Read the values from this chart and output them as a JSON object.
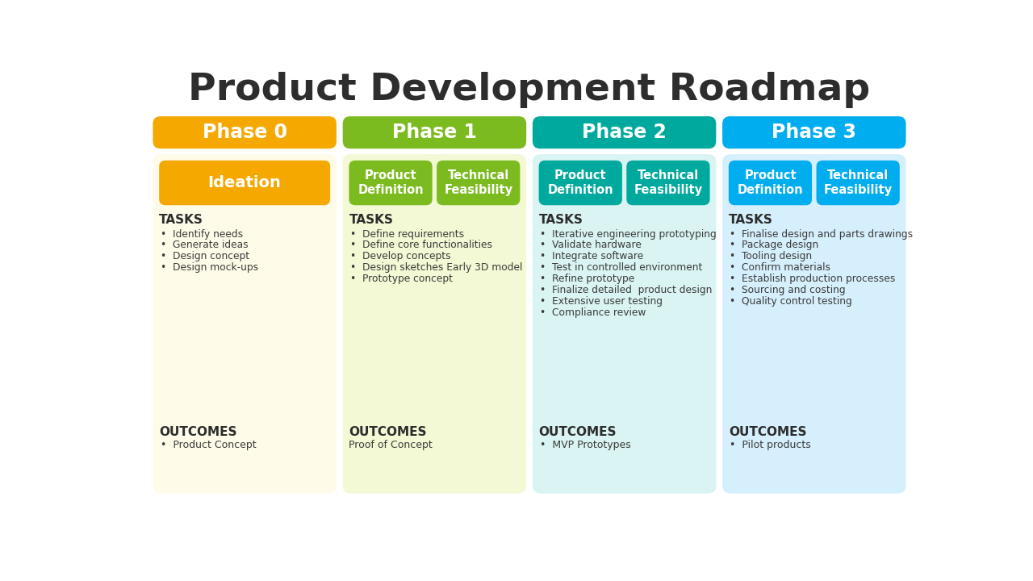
{
  "title": "Product Development Roadmap",
  "title_fontsize": 34,
  "title_color": "#2d2d2d",
  "background_color": "#ffffff",
  "phases": [
    {
      "label": "Phase 0",
      "header_color": "#F5A800",
      "bg_color": "#FEFBE8",
      "sub_labels": [
        "Ideation"
      ],
      "sub_colors": [
        "#F5A800"
      ],
      "tasks": [
        "Identify needs",
        "Generate ideas",
        "Design concept",
        "Design mock-ups"
      ],
      "outcomes": [
        "Product Concept"
      ],
      "outcome_bullet": true
    },
    {
      "label": "Phase 1",
      "header_color": "#7CBB1F",
      "bg_color": "#F2F9D4",
      "sub_labels": [
        "Product\nDefinition",
        "Technical\nFeasibility"
      ],
      "sub_colors": [
        "#7CBB1F",
        "#7CBB1F"
      ],
      "tasks": [
        "Define requirements",
        "Define core functionalities",
        "Develop concepts",
        "Design sketches Early 3D model",
        "Prototype concept"
      ],
      "outcomes": [
        "Proof of Concept"
      ],
      "outcome_bullet": false
    },
    {
      "label": "Phase 2",
      "header_color": "#00A99D",
      "bg_color": "#D9F4F2",
      "sub_labels": [
        "Product\nDefinition",
        "Technical\nFeasibility"
      ],
      "sub_colors": [
        "#00A99D",
        "#00A99D"
      ],
      "tasks": [
        "Iterative engineering prototyping",
        "Validate hardware",
        "Integrate software",
        "Test in controlled environment",
        "Refine prototype",
        "Finalize detailed  product design",
        "Extensive user testing",
        "Compliance review"
      ],
      "outcomes": [
        "MVP Prototypes"
      ],
      "outcome_bullet": true
    },
    {
      "label": "Phase 3",
      "header_color": "#00ADEF",
      "bg_color": "#D6EFFC",
      "sub_labels": [
        "Product\nDefinition",
        "Technical\nFeasibility"
      ],
      "sub_colors": [
        "#00ADEF",
        "#00ADEF"
      ],
      "tasks": [
        "Finalise design and parts drawings",
        "Package design",
        "Tooling design",
        "Confirm materials",
        "Establish production processes",
        "Sourcing and costing",
        "Quality control testing"
      ],
      "outcomes": [
        "Pilot products"
      ],
      "outcome_bullet": true
    }
  ]
}
